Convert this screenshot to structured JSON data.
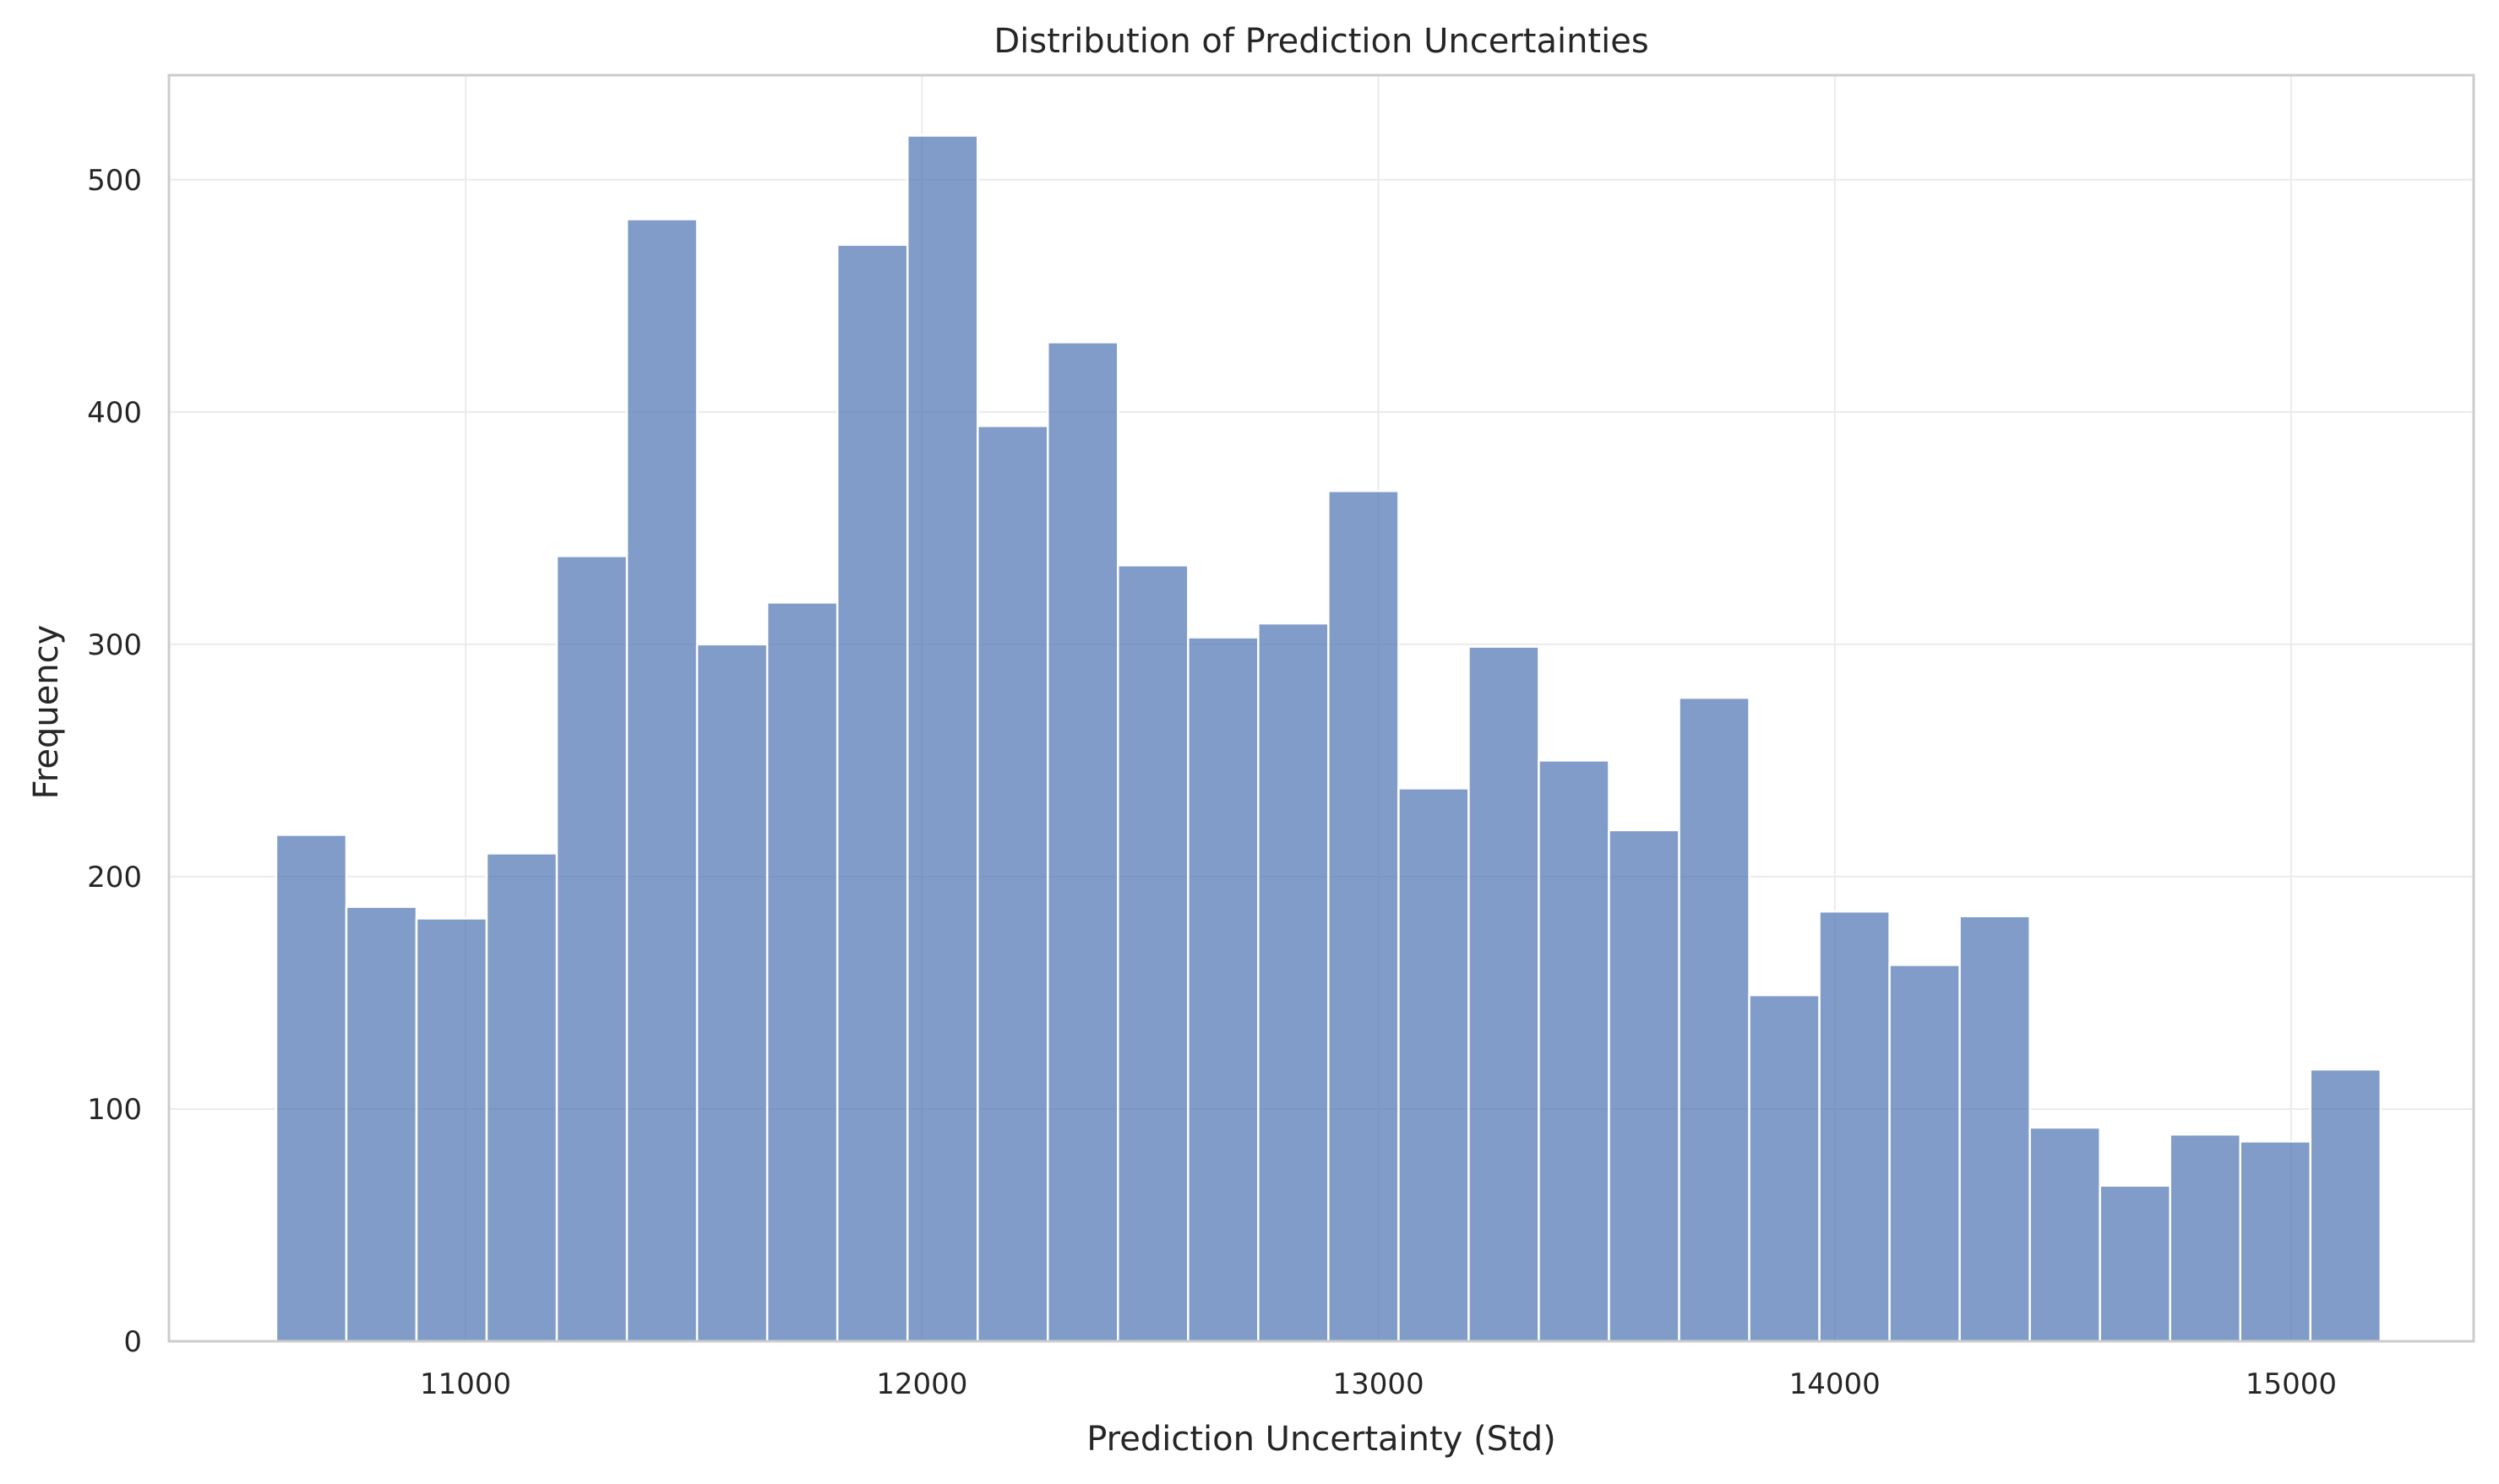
{
  "chart_data": {
    "type": "bar",
    "subtype": "histogram",
    "title": "Distribution of Prediction Uncertainties",
    "xlabel": "Prediction Uncertainty (Std)",
    "ylabel": "Frequency",
    "xlim": [
      10350,
      15400
    ],
    "ylim": [
      0,
      545
    ],
    "xticks": [
      11000,
      12000,
      13000,
      14000,
      15000
    ],
    "yticks": [
      0,
      100,
      200,
      300,
      400,
      500
    ],
    "grid": true,
    "bar_color": "#4c72b0",
    "bin_start": 10585,
    "bin_width": 153.7,
    "values": [
      218,
      187,
      182,
      210,
      338,
      483,
      300,
      318,
      472,
      519,
      394,
      430,
      334,
      303,
      309,
      366,
      238,
      299,
      250,
      220,
      277,
      149,
      185,
      162,
      183,
      92,
      67,
      89,
      86,
      117
    ]
  }
}
